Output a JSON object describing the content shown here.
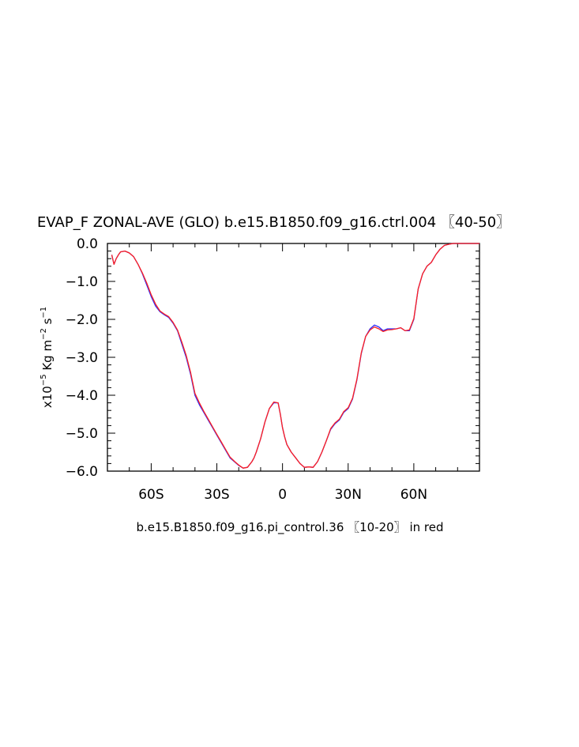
{
  "chart_data": {
    "type": "line",
    "title": "EVAP_F ZONAL-AVE (GLO) b.e15.B1850.f09_g16.ctrl.004 〖40-50〗",
    "xlabel": "b.e15.B1850.f09_g16.pi_control.36 〖10-20〗 in red",
    "ylabel": {
      "prefix": "x10",
      "exponent": "−5",
      "units_1": " Kg m",
      "units_exp_1": "−2",
      "units_2": " s",
      "units_exp_2": "−1"
    },
    "ylim": [
      -6.0,
      0.0
    ],
    "xlim": [
      -80,
      90
    ],
    "y_ticks": [
      {
        "value": 0.0,
        "label": "0.0"
      },
      {
        "value": -1.0,
        "label": "−1.0"
      },
      {
        "value": -2.0,
        "label": "−2.0"
      },
      {
        "value": -3.0,
        "label": "−3.0"
      },
      {
        "value": -4.0,
        "label": "−4.0"
      },
      {
        "value": -5.0,
        "label": "−5.0"
      },
      {
        "value": -6.0,
        "label": "−6.0"
      }
    ],
    "x_ticks": [
      {
        "value": -60,
        "label": "60S"
      },
      {
        "value": -30,
        "label": "30S"
      },
      {
        "value": 0,
        "label": "0"
      },
      {
        "value": 30,
        "label": "30N"
      },
      {
        "value": 60,
        "label": "60N"
      }
    ],
    "series": [
      {
        "color": "#2b2bff",
        "x": [
          -78,
          -77,
          -76,
          -75,
          -74,
          -72,
          -70,
          -68,
          -66,
          -64,
          -62,
          -60,
          -58,
          -56,
          -54,
          -52,
          -50,
          -48,
          -46,
          -44,
          -42,
          -40,
          -38,
          -36,
          -34,
          -32,
          -30,
          -28,
          -26,
          -24,
          -22,
          -20,
          -18,
          -16,
          -14,
          -13,
          -12,
          -10,
          -8,
          -6,
          -4,
          -2,
          -1,
          0,
          1,
          2,
          4,
          6,
          8,
          10,
          12,
          14,
          16,
          18,
          20,
          22,
          24,
          26,
          28,
          30,
          32,
          34,
          36,
          38,
          40,
          42,
          44,
          46,
          48,
          50,
          52,
          54,
          56,
          58,
          60,
          62,
          64,
          66,
          68,
          70,
          72,
          74,
          76,
          78,
          80,
          82,
          84,
          86,
          88,
          90
        ],
        "y": [
          -0.3,
          -0.55,
          -0.4,
          -0.3,
          -0.22,
          -0.2,
          -0.25,
          -0.35,
          -0.55,
          -0.8,
          -1.1,
          -1.4,
          -1.65,
          -1.8,
          -1.88,
          -1.95,
          -2.1,
          -2.3,
          -2.65,
          -3.0,
          -3.45,
          -4.0,
          -4.25,
          -4.45,
          -4.65,
          -4.85,
          -5.05,
          -5.25,
          -5.45,
          -5.65,
          -5.75,
          -5.85,
          -5.92,
          -5.9,
          -5.75,
          -5.65,
          -5.5,
          -5.15,
          -4.7,
          -4.35,
          -4.2,
          -4.2,
          -4.5,
          -4.85,
          -5.1,
          -5.3,
          -5.5,
          -5.65,
          -5.8,
          -5.9,
          -5.89,
          -5.9,
          -5.75,
          -5.5,
          -5.2,
          -4.9,
          -4.75,
          -4.65,
          -4.45,
          -4.35,
          -4.1,
          -3.6,
          -2.9,
          -2.45,
          -2.25,
          -2.15,
          -2.2,
          -2.3,
          -2.25,
          -2.25,
          -2.25,
          -2.22,
          -2.3,
          -2.3,
          -2.0,
          -1.2,
          -0.8,
          -0.6,
          -0.5,
          -0.3,
          -0.15,
          -0.05,
          -0.02,
          0.0,
          0.0,
          0.0,
          0.0,
          0.0,
          0.0,
          0.0
        ]
      },
      {
        "color": "#ff2020",
        "x": [
          -78,
          -77,
          -76,
          -75,
          -74,
          -72,
          -70,
          -68,
          -66,
          -64,
          -62,
          -60,
          -58,
          -56,
          -54,
          -52,
          -50,
          -48,
          -46,
          -44,
          -42,
          -40,
          -38,
          -36,
          -34,
          -32,
          -30,
          -28,
          -26,
          -24,
          -22,
          -20,
          -18,
          -16,
          -14,
          -13,
          -12,
          -10,
          -8,
          -6,
          -4,
          -2,
          -1,
          0,
          1,
          2,
          4,
          6,
          8,
          10,
          12,
          14,
          16,
          18,
          20,
          22,
          24,
          26,
          28,
          30,
          32,
          34,
          36,
          38,
          40,
          42,
          44,
          46,
          48,
          50,
          52,
          54,
          56,
          58,
          60,
          62,
          64,
          66,
          68,
          70,
          72,
          74,
          76,
          78,
          80,
          82,
          84,
          86,
          88,
          90
        ],
        "y": [
          -0.3,
          -0.55,
          -0.4,
          -0.3,
          -0.22,
          -0.2,
          -0.25,
          -0.35,
          -0.55,
          -0.78,
          -1.05,
          -1.35,
          -1.6,
          -1.78,
          -1.86,
          -1.93,
          -2.08,
          -2.28,
          -2.6,
          -2.95,
          -3.4,
          -3.95,
          -4.2,
          -4.42,
          -4.62,
          -4.83,
          -5.03,
          -5.23,
          -5.43,
          -5.63,
          -5.74,
          -5.84,
          -5.92,
          -5.9,
          -5.75,
          -5.65,
          -5.5,
          -5.15,
          -4.7,
          -4.35,
          -4.18,
          -4.2,
          -4.5,
          -4.85,
          -5.1,
          -5.3,
          -5.5,
          -5.65,
          -5.8,
          -5.9,
          -5.89,
          -5.9,
          -5.75,
          -5.5,
          -5.2,
          -4.88,
          -4.73,
          -4.63,
          -4.43,
          -4.33,
          -4.08,
          -3.58,
          -2.88,
          -2.45,
          -2.28,
          -2.2,
          -2.25,
          -2.32,
          -2.28,
          -2.27,
          -2.25,
          -2.22,
          -2.3,
          -2.28,
          -1.98,
          -1.2,
          -0.8,
          -0.6,
          -0.5,
          -0.3,
          -0.15,
          -0.05,
          -0.02,
          0.0,
          0.0,
          0.0,
          0.0,
          0.0,
          0.0,
          0.0
        ]
      }
    ]
  }
}
